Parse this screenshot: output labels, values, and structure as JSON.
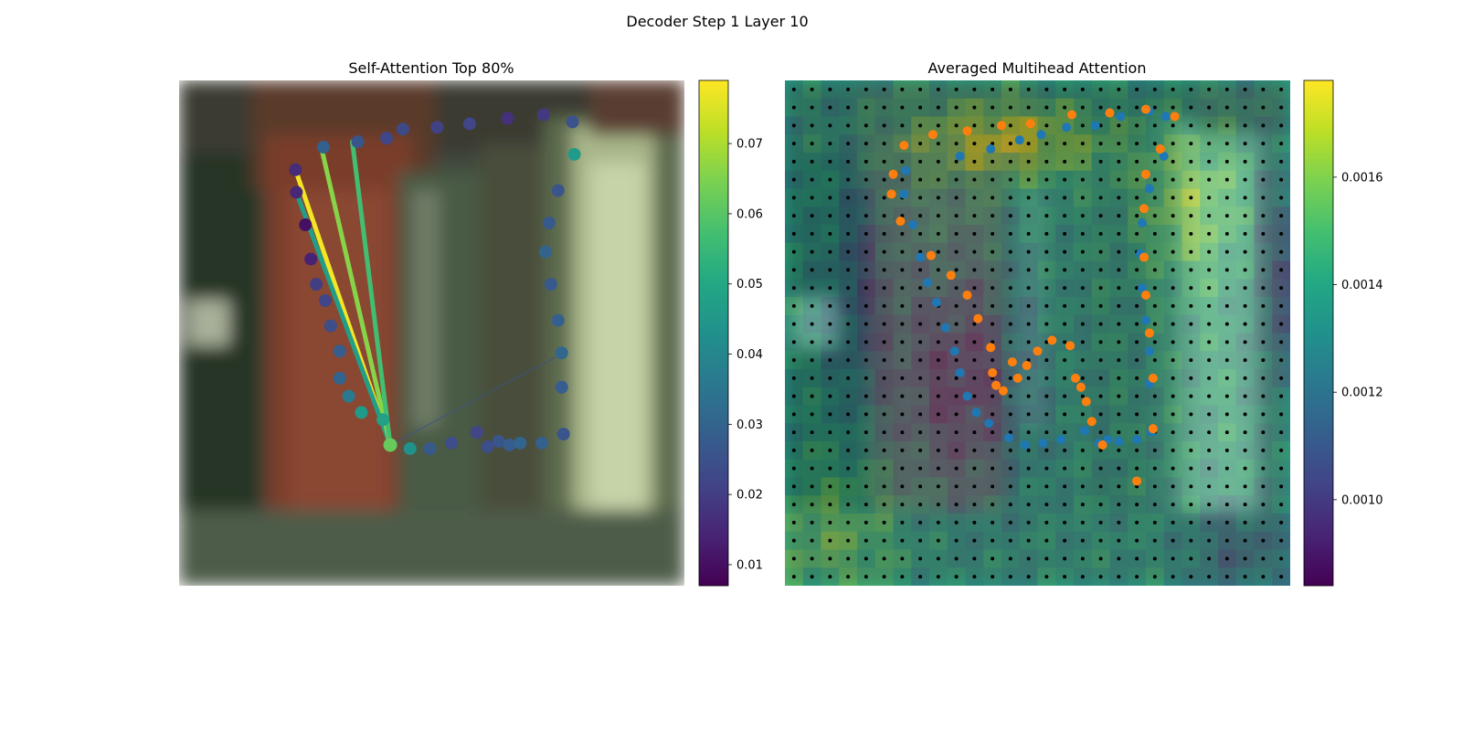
{
  "figure": {
    "suptitle": "Decoder Step 1 Layer 10"
  },
  "chart_data": [
    {
      "type": "scatter",
      "title": "Self-Attention Top 80%",
      "xlim": [
        0,
        28
      ],
      "ylim": [
        28,
        0
      ],
      "axes_visible": false,
      "background": "blurred image (brick pillar, doorway, pale right panel)",
      "colormap": "viridis",
      "colorbar": {
        "range": [
          0.007,
          0.079
        ],
        "ticks": [
          0.01,
          0.02,
          0.03,
          0.04,
          0.05,
          0.06,
          0.07
        ],
        "tick_labels": [
          "0.01",
          "0.02",
          "0.03",
          "0.04",
          "0.05",
          "0.06",
          "0.07"
        ]
      },
      "query_point": {
        "x": 11.7,
        "y": 20.2,
        "weight": 0.062
      },
      "points": [
        {
          "x": 6.45,
          "y": 4.95,
          "w": 0.016
        },
        {
          "x": 6.5,
          "y": 6.2,
          "w": 0.015
        },
        {
          "x": 7.0,
          "y": 8.0,
          "w": 0.01
        },
        {
          "x": 7.3,
          "y": 9.9,
          "w": 0.014
        },
        {
          "x": 7.6,
          "y": 11.3,
          "w": 0.02
        },
        {
          "x": 8.1,
          "y": 12.2,
          "w": 0.022
        },
        {
          "x": 8.4,
          "y": 13.6,
          "w": 0.024
        },
        {
          "x": 8.9,
          "y": 15.0,
          "w": 0.028
        },
        {
          "x": 8.9,
          "y": 16.5,
          "w": 0.03
        },
        {
          "x": 9.4,
          "y": 17.5,
          "w": 0.036
        },
        {
          "x": 10.1,
          "y": 18.4,
          "w": 0.046
        },
        {
          "x": 11.3,
          "y": 18.8,
          "w": 0.048
        },
        {
          "x": 12.8,
          "y": 20.4,
          "w": 0.043
        },
        {
          "x": 13.9,
          "y": 20.4,
          "w": 0.027
        },
        {
          "x": 15.1,
          "y": 20.1,
          "w": 0.024
        },
        {
          "x": 16.5,
          "y": 19.5,
          "w": 0.022
        },
        {
          "x": 17.1,
          "y": 20.3,
          "w": 0.024
        },
        {
          "x": 17.7,
          "y": 20.0,
          "w": 0.026
        },
        {
          "x": 18.3,
          "y": 20.2,
          "w": 0.028
        },
        {
          "x": 18.9,
          "y": 20.1,
          "w": 0.03
        },
        {
          "x": 20.1,
          "y": 20.1,
          "w": 0.029
        },
        {
          "x": 21.3,
          "y": 19.6,
          "w": 0.026
        },
        {
          "x": 21.2,
          "y": 17.0,
          "w": 0.028
        },
        {
          "x": 21.2,
          "y": 15.1,
          "w": 0.031
        },
        {
          "x": 21.0,
          "y": 13.3,
          "w": 0.029
        },
        {
          "x": 20.6,
          "y": 11.3,
          "w": 0.027
        },
        {
          "x": 20.3,
          "y": 9.5,
          "w": 0.03
        },
        {
          "x": 20.5,
          "y": 7.9,
          "w": 0.027
        },
        {
          "x": 21.0,
          "y": 6.1,
          "w": 0.026
        },
        {
          "x": 21.9,
          "y": 4.1,
          "w": 0.046
        },
        {
          "x": 21.8,
          "y": 2.3,
          "w": 0.025
        },
        {
          "x": 20.2,
          "y": 1.9,
          "w": 0.019
        },
        {
          "x": 18.2,
          "y": 2.1,
          "w": 0.017
        },
        {
          "x": 16.1,
          "y": 2.4,
          "w": 0.022
        },
        {
          "x": 14.3,
          "y": 2.6,
          "w": 0.021
        },
        {
          "x": 12.4,
          "y": 2.7,
          "w": 0.023
        },
        {
          "x": 11.5,
          "y": 3.2,
          "w": 0.022
        },
        {
          "x": 9.9,
          "y": 3.4,
          "w": 0.026
        },
        {
          "x": 8.0,
          "y": 3.7,
          "w": 0.029
        }
      ],
      "top_links": [
        {
          "x": 6.45,
          "y": 4.95,
          "w": 0.078
        },
        {
          "x": 6.5,
          "y": 6.2,
          "w": 0.047
        },
        {
          "x": 7.9,
          "y": 3.8,
          "w": 0.066
        },
        {
          "x": 9.6,
          "y": 3.4,
          "w": 0.057
        }
      ]
    },
    {
      "type": "heatmap",
      "title": "Averaged Multihead Attention",
      "grid_size": 28,
      "xlim": [
        0,
        28
      ],
      "ylim": [
        28,
        0
      ],
      "axes_visible": false,
      "colormap": "viridis",
      "colorbar": {
        "range": [
          0.00084,
          0.00178
        ],
        "ticks": [
          0.001,
          0.0012,
          0.0014,
          0.0016
        ],
        "tick_labels": [
          "0.0010",
          "0.0012",
          "0.0014",
          "0.0016"
        ]
      },
      "overlay": "blurred image at partial opacity",
      "grid_points": {
        "count_per_axis": 28,
        "color": "#000000"
      },
      "series": [
        {
          "color": "#1f77b4",
          "points": [
            [
              6.7,
              5.0
            ],
            [
              6.6,
              6.3
            ],
            [
              7.1,
              8.0
            ],
            [
              7.5,
              9.8
            ],
            [
              7.9,
              11.2
            ],
            [
              8.4,
              12.3
            ],
            [
              8.9,
              13.7
            ],
            [
              9.4,
              15.0
            ],
            [
              9.7,
              16.2
            ],
            [
              10.1,
              17.5
            ],
            [
              10.6,
              18.4
            ],
            [
              11.3,
              19.0
            ],
            [
              12.4,
              19.8
            ],
            [
              13.3,
              20.2
            ],
            [
              14.3,
              20.1
            ],
            [
              15.3,
              19.9
            ],
            [
              16.6,
              19.4
            ],
            [
              17.4,
              20.1
            ],
            [
              17.9,
              19.9
            ],
            [
              18.5,
              20.0
            ],
            [
              19.5,
              19.9
            ],
            [
              20.3,
              19.5
            ],
            [
              20.2,
              16.8
            ],
            [
              20.2,
              15.0
            ],
            [
              20.0,
              13.3
            ],
            [
              19.8,
              11.5
            ],
            [
              19.7,
              9.6
            ],
            [
              19.8,
              7.9
            ],
            [
              20.2,
              6.0
            ],
            [
              21.0,
              4.2
            ],
            [
              21.1,
              2.0
            ],
            [
              20.2,
              1.7
            ],
            [
              18.6,
              2.0
            ],
            [
              17.2,
              2.5
            ],
            [
              15.6,
              2.6
            ],
            [
              14.2,
              3.0
            ],
            [
              13.0,
              3.3
            ],
            [
              11.4,
              3.8
            ],
            [
              9.7,
              4.2
            ]
          ]
        },
        {
          "color": "#ff7f0e",
          "points": [
            [
              6.0,
              5.2
            ],
            [
              5.9,
              6.3
            ],
            [
              6.4,
              7.8
            ],
            [
              8.1,
              9.7
            ],
            [
              9.2,
              10.8
            ],
            [
              10.1,
              11.9
            ],
            [
              10.7,
              13.2
            ],
            [
              11.4,
              14.8
            ],
            [
              11.5,
              16.2
            ],
            [
              11.7,
              16.9
            ],
            [
              12.1,
              17.2
            ],
            [
              12.6,
              15.6
            ],
            [
              12.9,
              16.5
            ],
            [
              13.4,
              15.8
            ],
            [
              14.0,
              15.0
            ],
            [
              14.8,
              14.4
            ],
            [
              15.8,
              14.7
            ],
            [
              16.1,
              16.5
            ],
            [
              16.4,
              17.0
            ],
            [
              16.7,
              17.8
            ],
            [
              17.0,
              18.9
            ],
            [
              17.6,
              20.2
            ],
            [
              19.5,
              22.2
            ],
            [
              20.4,
              19.3
            ],
            [
              20.4,
              16.5
            ],
            [
              20.2,
              14.0
            ],
            [
              20.0,
              11.9
            ],
            [
              19.9,
              9.8
            ],
            [
              19.9,
              7.1
            ],
            [
              20.0,
              5.2
            ],
            [
              20.8,
              3.8
            ],
            [
              21.6,
              2.0
            ],
            [
              20.0,
              1.6
            ],
            [
              18.0,
              1.8
            ],
            [
              15.9,
              1.9
            ],
            [
              13.6,
              2.4
            ],
            [
              12.0,
              2.5
            ],
            [
              10.1,
              2.8
            ],
            [
              8.2,
              3.0
            ],
            [
              6.6,
              3.6
            ]
          ]
        }
      ]
    }
  ]
}
